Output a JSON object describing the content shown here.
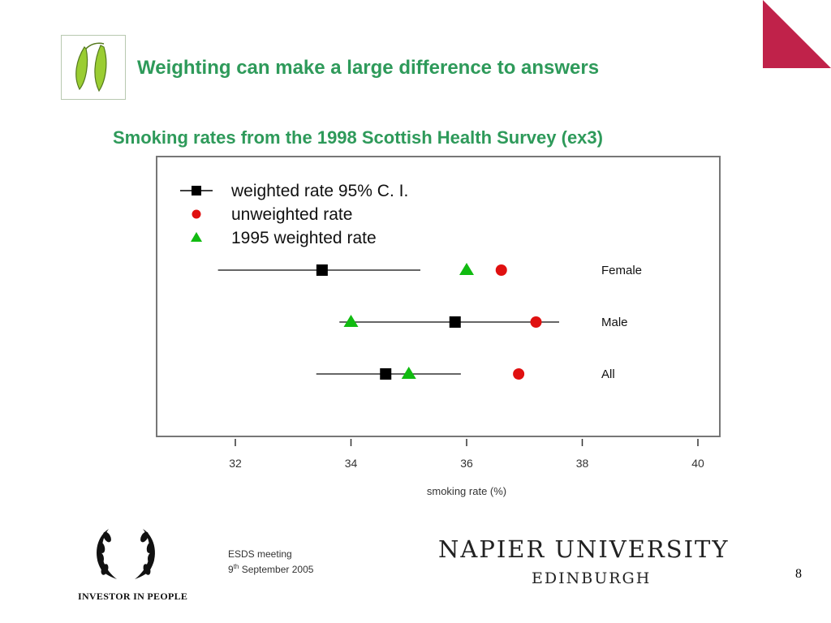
{
  "slide": {
    "title": "Weighting can make a large difference to answers",
    "subtitle": "Smoking rates from the 1998 Scottish Health Survey (ex3)",
    "accent_color": "#2e9a5a",
    "corner_color": "#c0224a",
    "page_number": "8"
  },
  "footer": {
    "meeting": "ESDS meeting",
    "date_day": "9",
    "date_suffix": "th",
    "date_rest": " September 2005",
    "investor_text": "INVESTOR IN PEOPLE",
    "university_line1": "NAPIER UNIVERSITY",
    "university_line2": "EDINBURGH"
  },
  "chart_data": {
    "type": "scatter",
    "xlabel": "smoking rate (%)",
    "xlim": [
      31,
      40
    ],
    "xticks": [
      32,
      34,
      36,
      38,
      40
    ],
    "legend": [
      {
        "label": "weighted rate 95% C. I.",
        "marker": "square",
        "color": "#000000"
      },
      {
        "label": "unweighted rate",
        "marker": "circle",
        "color": "#e01010"
      },
      {
        "label": "1995 weighted rate",
        "marker": "triangle",
        "color": "#11bb11"
      }
    ],
    "legend_position": "top-left",
    "grid": false,
    "categories": [
      "Female",
      "Male",
      "All"
    ],
    "weighted_rate": [
      33.5,
      35.8,
      34.6
    ],
    "ci_low": [
      31.7,
      33.8,
      33.4
    ],
    "ci_high": [
      35.2,
      37.6,
      35.9
    ],
    "unweighted_rate": [
      36.6,
      37.2,
      36.9
    ],
    "weighted_rate_1995": [
      36.0,
      34.0,
      35.0
    ]
  }
}
